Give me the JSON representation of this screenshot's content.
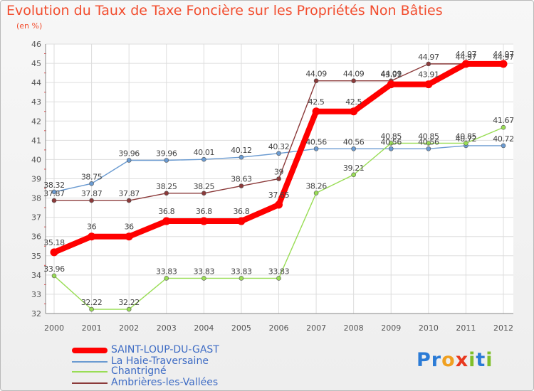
{
  "title": "Evolution du Taux de Taxe Foncière sur les Propriétés Non Bâties",
  "subtitle": "(en %)",
  "logo": {
    "text": "Proxiti",
    "letters": [
      "P",
      "r",
      "o",
      "x",
      "i",
      "t",
      "i"
    ],
    "colors": [
      "#2b7bd6",
      "#2b7bd6",
      "#f0a020",
      "#e8381e",
      "#7fbf2a",
      "#2b7bd6",
      "#7fbf2a"
    ]
  },
  "chart_data": {
    "type": "line",
    "title": "Evolution du Taux de Taxe Foncière sur les Propriétés Non Bâties",
    "ylabel": "(en %)",
    "xlabel": "",
    "ylim": [
      32,
      46
    ],
    "yticks": [
      "32",
      "33",
      "34",
      "35",
      "36",
      "37",
      "38",
      "39",
      "40",
      "41",
      "42",
      "43",
      "44",
      "45",
      "46"
    ],
    "categories": [
      "2000",
      "2001",
      "2002",
      "2003",
      "2004",
      "2005",
      "2006",
      "2007",
      "2008",
      "2009",
      "2010",
      "2011",
      "2012"
    ],
    "series": [
      {
        "name": "SAINT-LOUP-DU-GAST",
        "color": "#ff0000",
        "values": [
          35.18,
          36,
          36,
          36.8,
          36.8,
          36.8,
          37.65,
          42.5,
          42.5,
          43.91,
          43.91,
          44.97,
          44.97
        ],
        "labels": [
          "35.18",
          "36",
          "36",
          "36.8",
          "36.8",
          "36.8",
          "37.65",
          "42.5",
          "42.5",
          "43.91",
          "43.91",
          "44.97",
          "44.97"
        ]
      },
      {
        "name": "La Haie-Traversaine",
        "color": "#6b9bd1",
        "values": [
          38.32,
          38.75,
          39.96,
          39.96,
          40.01,
          40.12,
          40.32,
          40.56,
          40.56,
          40.56,
          40.56,
          40.72,
          40.72
        ],
        "labels": [
          "38.32",
          "38.75",
          "39.96",
          "39.96",
          "40.01",
          "40.12",
          "40.32",
          "40.56",
          "40.56",
          "40.56",
          "40.56",
          "40.72",
          "40.72"
        ]
      },
      {
        "name": "Chantrigné",
        "color": "#99dd55",
        "values": [
          33.96,
          32.22,
          32.22,
          33.83,
          33.83,
          33.83,
          33.83,
          38.26,
          39.21,
          40.85,
          40.85,
          40.85,
          41.67
        ],
        "labels": [
          "33.96",
          "32.22",
          "32.22",
          "33.83",
          "33.83",
          "33.83",
          "33.83",
          "38.26",
          "39.21",
          "40.85",
          "40.85",
          "40.85",
          "41.67"
        ]
      },
      {
        "name": "Ambrières-les-Vallées",
        "color": "#8b3a3a",
        "values": [
          37.87,
          37.87,
          37.87,
          38.25,
          38.25,
          38.63,
          39,
          44.09,
          44.09,
          44.09,
          44.97,
          44.97,
          44.97
        ],
        "labels": [
          "37.87",
          "37.87",
          "37.87",
          "38.25",
          "38.25",
          "38.63",
          "39",
          "44.09",
          "44.09",
          "44.09",
          "44.97",
          "44.97",
          "44.97"
        ]
      }
    ],
    "legend": [
      "SAINT-LOUP-DU-GAST",
      "La Haie-Traversaine",
      "Chantrigné",
      "Ambrières-les-Vallées"
    ],
    "legend_position": "bottom-left",
    "grid": true
  }
}
